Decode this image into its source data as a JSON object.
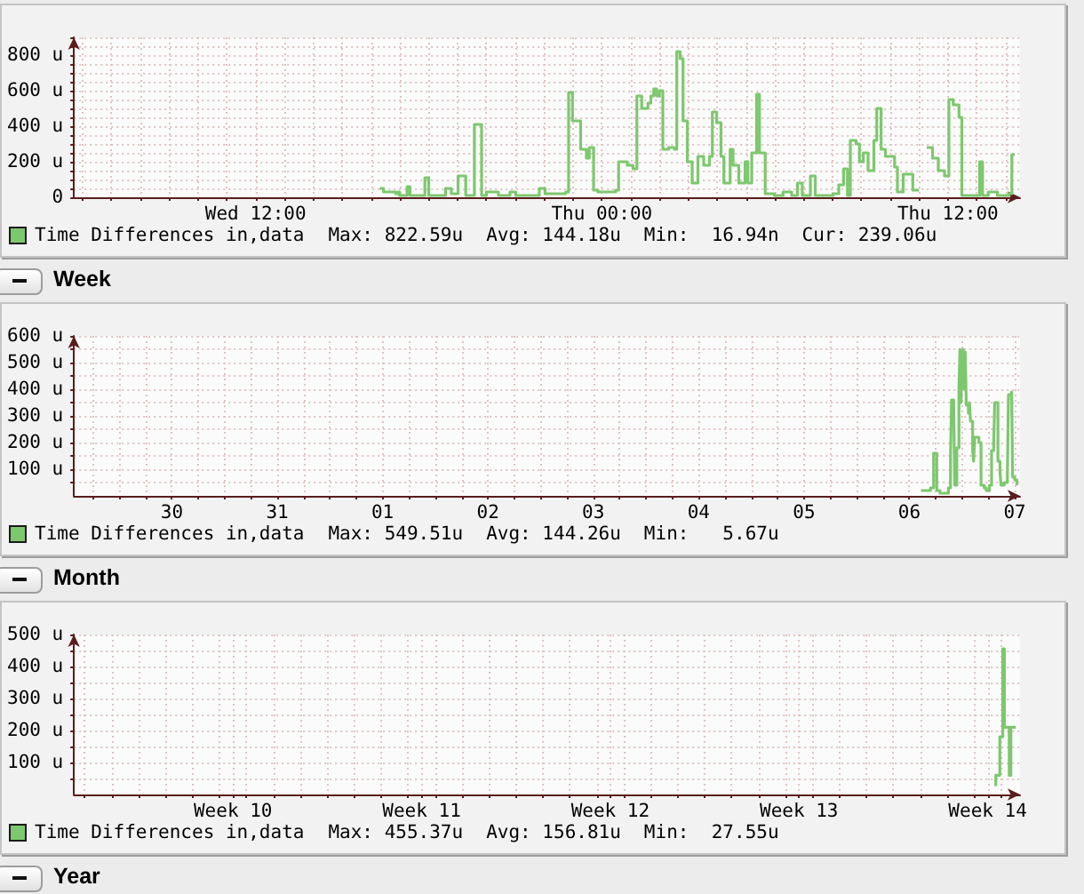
{
  "chart_data": [
    {
      "type": "step",
      "x": [
        "--04-06T16:18",
        "--04-06T16:26",
        "--04-06T16:51",
        "--04-06T16:55",
        "--04-06T16:59",
        "--04-06T17:15",
        "--04-06T17:21",
        "--04-06T17:52",
        "--04-06T18:00",
        "--04-06T18:35",
        "--04-06T18:47",
        "--04-06T19:01",
        "--04-06T19:17",
        "--04-06T19:35",
        "--04-06T19:50",
        "--04-06T20:00",
        "--04-06T20:25",
        "--04-06T20:49",
        "--04-06T21:01",
        "--04-06T21:50",
        "--04-06T22:02",
        "--04-06T22:45",
        "--04-06T22:51",
        "--04-06T22:59",
        "--04-06T23:16",
        "--04-06T23:28",
        "--04-06T23:34",
        "--04-06T23:43",
        "--04-06T23:52",
        "--04-07T00:29",
        "--04-07T00:35",
        "--04-07T00:53",
        "--04-07T01:05",
        "--04-07T01:13",
        "--04-07T01:23",
        "--04-07T01:36",
        "--04-07T01:42",
        "--04-07T01:48",
        "--04-07T01:54",
        "--04-07T02:00",
        "--04-07T02:07",
        "--04-07T02:19",
        "--04-07T02:31",
        "--04-07T02:36",
        "--04-07T02:43",
        "--04-07T02:49",
        "--04-07T02:58",
        "--04-07T03:08",
        "--04-07T03:20",
        "--04-07T03:32",
        "--04-07T03:44",
        "--04-07T03:50",
        "--04-07T03:59",
        "--04-07T04:08",
        "--04-07T04:14",
        "--04-07T04:27",
        "--04-07T04:33",
        "--04-07T04:45",
        "--04-07T04:58",
        "--04-07T05:04",
        "--04-07T05:12",
        "--04-07T05:22",
        "--04-07T05:28",
        "--04-07T05:40",
        "--04-07T05:59",
        "--04-07T06:17",
        "--04-07T06:35",
        "--04-07T06:47",
        "--04-07T06:57",
        "--04-07T07:14",
        "--04-07T07:24",
        "--04-07T08:01",
        "--04-07T08:13",
        "--04-07T08:23",
        "--04-07T08:31",
        "--04-07T08:37",
        "--04-07T08:49",
        "--04-07T08:56",
        "--04-07T09:04",
        "--04-07T09:14",
        "--04-07T09:26",
        "--04-07T09:32",
        "--04-07T09:41",
        "--04-07T09:50",
        "--04-07T10:09",
        "--04-07T10:15",
        "--04-07T10:27",
        "--04-07T10:47",
        "--04-07T11:00",
        "--04-07T11:16",
        "--04-07T11:28",
        "--04-07T11:40",
        "--04-07T11:53",
        "--04-07T12:02",
        "--04-07T12:11",
        "--04-07T12:23",
        "--04-07T12:29",
        "--04-07T13:06",
        "--04-07T13:12",
        "--04-07T13:24",
        "--04-07T13:43",
        "--04-07T14:07",
        "--04-07T14:13",
        "--04-07T14:19"
      ],
      "series": [
        {
          "name": "Time Differences in,data",
          "color": "#7dc86e",
          "values": [
            50,
            30,
            20,
            30,
            10,
            60,
            10,
            110,
            10,
            50,
            20,
            120,
            10,
            410,
            10,
            30,
            10,
            30,
            10,
            50,
            20,
            30,
            590,
            430,
            270,
            220,
            280,
            40,
            30,
            40,
            200,
            180,
            160,
            570,
            500,
            530,
            570,
            610,
            570,
            600,
            270,
            280,
            270,
            820,
            780,
            430,
            200,
            80,
            230,
            180,
            230,
            480,
            420,
            230,
            80,
            270,
            180,
            80,
            200,
            80,
            250,
            580,
            250,
            20,
            10,
            30,
            10,
            80,
            10,
            120,
            10,
            20,
            70,
            160,
            10,
            320,
            300,
            200,
            250,
            150,
            320,
            500,
            270,
            230,
            170,
            30,
            130,
            40,
            null,
            280,
            220,
            150,
            120,
            550,
            520,
            450,
            10,
            200,
            10,
            30,
            10,
            20,
            240,
            240
          ]
        }
      ],
      "xlim": [
        "--04-06T05:42",
        "--04-07T14:30"
      ],
      "xticks": [
        {
          "value": "--04-06T06:00",
          "label": null
        },
        {
          "value": "--04-06T07:00",
          "label": null
        },
        {
          "value": "--04-06T08:00",
          "label": null
        },
        {
          "value": "--04-06T09:00",
          "label": null
        },
        {
          "value": "--04-06T10:00",
          "label": null
        },
        {
          "value": "--04-06T11:00",
          "label": null
        },
        {
          "value": "--04-06T12:00",
          "label": "Wed 12:00"
        },
        {
          "value": "--04-06T13:00",
          "label": null
        },
        {
          "value": "--04-06T14:00",
          "label": null
        },
        {
          "value": "--04-06T15:00",
          "label": null
        },
        {
          "value": "--04-06T16:00",
          "label": null
        },
        {
          "value": "--04-06T17:00",
          "label": null
        },
        {
          "value": "--04-06T18:00",
          "label": null
        },
        {
          "value": "--04-06T19:00",
          "label": null
        },
        {
          "value": "--04-06T20:00",
          "label": null
        },
        {
          "value": "--04-06T21:00",
          "label": null
        },
        {
          "value": "--04-06T22:00",
          "label": null
        },
        {
          "value": "--04-06T23:00",
          "label": null
        },
        {
          "value": "--04-07T00:00",
          "label": "Thu 00:00"
        },
        {
          "value": "--04-07T01:00",
          "label": null
        },
        {
          "value": "--04-07T02:00",
          "label": null
        },
        {
          "value": "--04-07T03:00",
          "label": null
        },
        {
          "value": "--04-07T04:00",
          "label": null
        },
        {
          "value": "--04-07T05:00",
          "label": null
        },
        {
          "value": "--04-07T06:00",
          "label": null
        },
        {
          "value": "--04-07T07:00",
          "label": null
        },
        {
          "value": "--04-07T08:00",
          "label": null
        },
        {
          "value": "--04-07T09:00",
          "label": null
        },
        {
          "value": "--04-07T10:00",
          "label": null
        },
        {
          "value": "--04-07T11:00",
          "label": null
        },
        {
          "value": "--04-07T12:00",
          "label": "Thu 12:00"
        },
        {
          "value": "--04-07T13:00",
          "label": null
        },
        {
          "value": "--04-07T14:00",
          "label": null
        }
      ],
      "ylim": [
        0,
        900
      ],
      "yticks": [
        0,
        {
          "value": 50,
          "label": null
        },
        {
          "value": 100,
          "label": null
        },
        {
          "value": 150,
          "label": null
        },
        {
          "value": 200,
          "label": "200 u"
        },
        {
          "value": 250,
          "label": null
        },
        {
          "value": 300,
          "label": null
        },
        {
          "value": 350,
          "label": null
        },
        {
          "value": 400,
          "label": "400 u"
        },
        {
          "value": 450,
          "label": null
        },
        {
          "value": 500,
          "label": null
        },
        {
          "value": 550,
          "label": null
        },
        {
          "value": 600,
          "label": "600 u"
        },
        {
          "value": 650,
          "label": null
        },
        {
          "value": 700,
          "label": null
        },
        {
          "value": 750,
          "label": null
        },
        {
          "value": 800,
          "label": "800 u"
        },
        {
          "value": 850,
          "label": null
        },
        {
          "value": 900,
          "label": null
        }
      ],
      "grid": true,
      "legend": "bottom left",
      "annotations": [
        "Max: 822.59u",
        "Avg: 144.18u",
        "Min:  16.94n",
        "Cur: 239.06u"
      ]
    },
    {
      "type": "step",
      "title": "Week",
      "x": [
        "--04-06T14:38",
        "--04-06T16:48",
        "--04-06T17:31",
        "--04-06T18:14",
        "--04-06T18:58",
        "--04-06T20:53",
        "--04-06T21:22",
        "--04-06T21:36",
        "--04-06T22:05",
        "--04-06T22:19",
        "--04-06T22:48",
        "--04-06T23:17",
        "--04-06T23:31",
        "--04-06T23:46",
        "--04-07T00:00",
        "--04-07T00:14",
        "--04-07T00:29",
        "--04-07T00:43",
        "--04-07T00:58",
        "--04-07T01:26",
        "--04-07T01:41",
        "--04-07T01:55",
        "--04-07T02:24",
        "--04-07T02:38",
        "--04-07T02:53",
        "--04-07T03:50",
        "--04-07T04:19",
        "--04-07T05:02",
        "--04-07T05:31",
        "--04-07T06:14",
        "--04-07T06:43",
        "--04-07T07:12",
        "--04-07T07:26",
        "--04-07T08:10",
        "--04-07T08:38",
        "--04-07T08:53",
        "--04-07T09:36",
        "--04-07T10:19",
        "--04-07T10:34",
        "--04-07T11:17",
        "--04-07T11:31",
        "--04-07T12:00",
        "--04-07T12:29"
      ],
      "series": [
        {
          "name": "Time Differences in,data",
          "color": "#7dc86e",
          "values": [
            20,
            30,
            160,
            20,
            10,
            30,
            150,
            360,
            350,
            40,
            180,
            410,
            550,
            350,
            530,
            550,
            400,
            540,
            340,
            310,
            350,
            280,
            170,
            130,
            220,
            200,
            40,
            30,
            20,
            40,
            170,
            200,
            350,
            130,
            90,
            40,
            50,
            70,
            380,
            390,
            70,
            60,
            40
          ]
        }
      ],
      "xlim": [
        "--03-29T13:41",
        "--04-07T13:12"
      ],
      "xticks": [
        {
          "value": "--03-29T18:00",
          "label": null
        },
        {
          "value": "--03-30T00:00",
          "label": null
        },
        {
          "value": "--03-30T06:00",
          "label": null
        },
        {
          "value": "--03-30T12:00",
          "label": "30"
        },
        {
          "value": "--03-30T18:00",
          "label": null
        },
        {
          "value": "--03-31T00:00",
          "label": null
        },
        {
          "value": "--03-31T06:00",
          "label": null
        },
        {
          "value": "--03-31T12:00",
          "label": "31"
        },
        {
          "value": "--03-31T18:00",
          "label": null
        },
        {
          "value": "--04-01T00:00",
          "label": null
        },
        {
          "value": "--04-01T06:00",
          "label": null
        },
        {
          "value": "--04-01T12:00",
          "label": "01"
        },
        {
          "value": "--04-01T18:00",
          "label": null
        },
        {
          "value": "--04-02T00:00",
          "label": null
        },
        {
          "value": "--04-02T06:00",
          "label": null
        },
        {
          "value": "--04-02T12:00",
          "label": "02"
        },
        {
          "value": "--04-02T18:00",
          "label": null
        },
        {
          "value": "--04-03T00:00",
          "label": null
        },
        {
          "value": "--04-03T06:00",
          "label": null
        },
        {
          "value": "--04-03T12:00",
          "label": "03"
        },
        {
          "value": "--04-03T18:00",
          "label": null
        },
        {
          "value": "--04-04T00:00",
          "label": null
        },
        {
          "value": "--04-04T06:00",
          "label": null
        },
        {
          "value": "--04-04T12:00",
          "label": "04"
        },
        {
          "value": "--04-04T18:00",
          "label": null
        },
        {
          "value": "--04-05T00:00",
          "label": null
        },
        {
          "value": "--04-05T06:00",
          "label": null
        },
        {
          "value": "--04-05T12:00",
          "label": "05"
        },
        {
          "value": "--04-05T18:00",
          "label": null
        },
        {
          "value": "--04-06T00:00",
          "label": null
        },
        {
          "value": "--04-06T06:00",
          "label": null
        },
        {
          "value": "--04-06T12:00",
          "label": "06"
        },
        {
          "value": "--04-06T18:00",
          "label": null
        },
        {
          "value": "--04-07T00:00",
          "label": null
        },
        {
          "value": "--04-07T06:00",
          "label": null
        },
        {
          "value": "--04-07T12:00",
          "label": "07"
        }
      ],
      "ylim": [
        0,
        600
      ],
      "yticks": [
        {
          "value": 50,
          "label": null
        },
        {
          "value": 100,
          "label": "100 u"
        },
        {
          "value": 150,
          "label": null
        },
        {
          "value": 200,
          "label": "200 u"
        },
        {
          "value": 250,
          "label": null
        },
        {
          "value": 300,
          "label": "300 u"
        },
        {
          "value": 350,
          "label": null
        },
        {
          "value": 400,
          "label": "400 u"
        },
        {
          "value": 450,
          "label": null
        },
        {
          "value": 500,
          "label": "500 u"
        },
        {
          "value": 550,
          "label": null
        },
        {
          "value": 600,
          "label": "600 u"
        }
      ],
      "grid": true,
      "legend": "bottom left",
      "annotations": [
        "Max: 549.51u",
        "Avg: 144.26u",
        "Min:   5.67u"
      ]
    },
    {
      "type": "step",
      "title": "Month",
      "x": [
        "--04-07T18:00",
        "--04-07T19:12",
        "--04-07T22:48",
        "--04-08T01:26",
        "--04-08T02:53",
        "--04-08T07:12",
        "--04-08T08:38",
        "--04-08T12:58"
      ],
      "series": [
        {
          "name": "Time Differences in,data",
          "color": "#7dc86e",
          "values": [
            30,
            60,
            180,
            455,
            210,
            60,
            210,
            210
          ]
        }
      ],
      "xlim": [
        "--03-04T14:24",
        "--04-08T16:48"
      ],
      "xticks": [
        {
          "value": "--03-05",
          "label": null
        },
        {
          "value": "--03-06",
          "label": null
        },
        {
          "value": "--03-07",
          "label": null
        },
        {
          "value": "--03-08",
          "label": null
        },
        {
          "value": "--03-09",
          "label": null
        },
        {
          "value": "--03-10",
          "label": null
        },
        {
          "value": "--03-10T12:00",
          "label": "Week 10"
        },
        {
          "value": "--03-11",
          "label": null
        },
        {
          "value": "--03-12",
          "label": null
        },
        {
          "value": "--03-13",
          "label": null
        },
        {
          "value": "--03-14",
          "label": null
        },
        {
          "value": "--03-15",
          "label": null
        },
        {
          "value": "--03-16",
          "label": null
        },
        {
          "value": "--03-17",
          "label": null
        },
        {
          "value": "--03-17T12:00",
          "label": "Week 11"
        },
        {
          "value": "--03-18",
          "label": null
        },
        {
          "value": "--03-19",
          "label": null
        },
        {
          "value": "--03-20",
          "label": null
        },
        {
          "value": "--03-21",
          "label": null
        },
        {
          "value": "--03-22",
          "label": null
        },
        {
          "value": "--03-23",
          "label": null
        },
        {
          "value": "--03-24",
          "label": null
        },
        {
          "value": "--03-24T12:00",
          "label": "Week 12"
        },
        {
          "value": "--03-25",
          "label": null
        },
        {
          "value": "--03-26",
          "label": null
        },
        {
          "value": "--03-27",
          "label": null
        },
        {
          "value": "--03-28",
          "label": null
        },
        {
          "value": "--03-29",
          "label": null
        },
        {
          "value": "--03-30",
          "label": null
        },
        {
          "value": "--03-31",
          "label": null
        },
        {
          "value": "--03-31T12:00",
          "label": "Week 13"
        },
        {
          "value": "--04-01",
          "label": null
        },
        {
          "value": "--04-02",
          "label": null
        },
        {
          "value": "--04-03",
          "label": null
        },
        {
          "value": "--04-04",
          "label": null
        },
        {
          "value": "--04-05",
          "label": null
        },
        {
          "value": "--04-06",
          "label": null
        },
        {
          "value": "--04-07",
          "label": null
        },
        {
          "value": "--04-07T12:00",
          "label": "Week 14"
        },
        {
          "value": "--04-08",
          "label": null
        }
      ],
      "ylim": [
        0,
        500
      ],
      "yticks": [
        {
          "value": 50,
          "label": null
        },
        {
          "value": 100,
          "label": "100 u"
        },
        {
          "value": 150,
          "label": null
        },
        {
          "value": 200,
          "label": "200 u"
        },
        {
          "value": 250,
          "label": null
        },
        {
          "value": 300,
          "label": "300 u"
        },
        {
          "value": 350,
          "label": null
        },
        {
          "value": 400,
          "label": "400 u"
        },
        {
          "value": 450,
          "label": null
        },
        {
          "value": 500,
          "label": "500 u"
        }
      ],
      "grid": true,
      "legend": "bottom left",
      "annotations": [
        "Max: 455.37u",
        "Avg: 156.81u",
        "Min:  27.55u"
      ]
    },
    {
      "type": "other",
      "title": "Year"
    }
  ]
}
